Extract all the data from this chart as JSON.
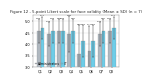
{
  "title": "Figure 12 - 5-point Likert scale for face validity (Mean ± SD) (n = 7)",
  "groups": [
    "Q1",
    "Q2",
    "Q3",
    "Q4",
    "Q5",
    "Q6",
    "Q7",
    "Q8"
  ],
  "series": [
    {
      "label": "Administrators",
      "color": "#b0b8c0",
      "values": [
        4.57,
        4.43,
        4.57,
        4.43,
        3.57,
        3.71,
        4.43,
        4.57
      ],
      "errors": [
        0.53,
        0.53,
        0.53,
        0.79,
        1.27,
        1.11,
        0.53,
        0.53
      ]
    },
    {
      "label": "IT",
      "color": "#6dcde8",
      "values": [
        4.71,
        4.57,
        4.57,
        4.57,
        4.14,
        4.14,
        4.57,
        4.71
      ],
      "errors": [
        0.49,
        0.53,
        0.53,
        0.53,
        0.69,
        0.69,
        0.53,
        0.49
      ]
    }
  ],
  "ylim": [
    3.0,
    5.3
  ],
  "yticks": [
    3.0,
    3.5,
    4.0,
    4.5,
    5.0
  ],
  "bar_width": 0.38,
  "background_color": "#ffffff",
  "grid_color": "#dddddd",
  "title_fontsize": 2.8,
  "tick_fontsize": 2.5,
  "legend_fontsize": 2.2,
  "value_fontsize": 1.6
}
